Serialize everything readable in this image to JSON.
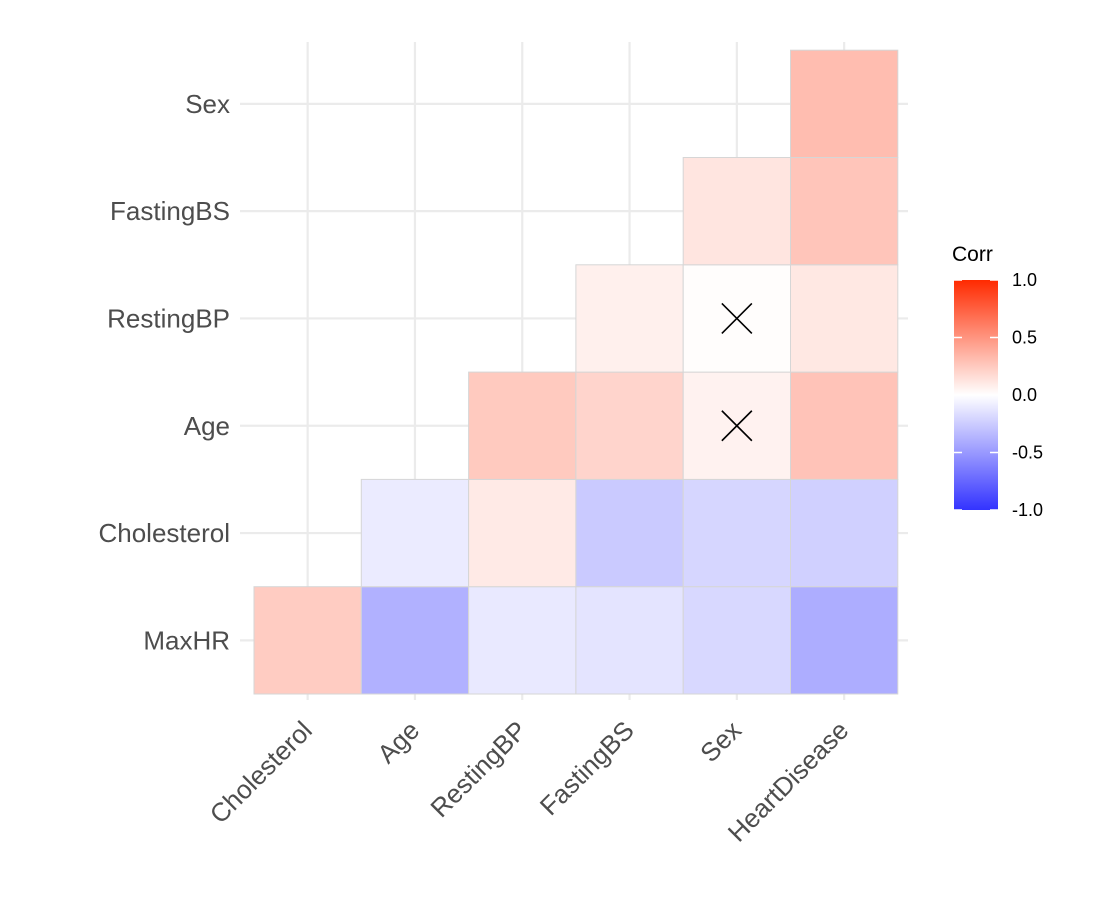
{
  "chart_data": {
    "type": "heatmap",
    "title": "",
    "xlabel": "",
    "ylabel": "",
    "x_categories": [
      "Cholesterol",
      "Age",
      "RestingBP",
      "FastingBS",
      "Sex",
      "HeartDisease"
    ],
    "y_categories": [
      "MaxHR",
      "Cholesterol",
      "Age",
      "RestingBP",
      "FastingBS",
      "Sex"
    ],
    "cells": [
      {
        "x": "Cholesterol",
        "y": "MaxHR",
        "value": 0.24
      },
      {
        "x": "Age",
        "y": "MaxHR",
        "value": -0.38
      },
      {
        "x": "RestingBP",
        "y": "MaxHR",
        "value": -0.11
      },
      {
        "x": "FastingBS",
        "y": "MaxHR",
        "value": -0.13
      },
      {
        "x": "Sex",
        "y": "MaxHR",
        "value": -0.19
      },
      {
        "x": "HeartDisease",
        "y": "MaxHR",
        "value": -0.4
      },
      {
        "x": "Age",
        "y": "Cholesterol",
        "value": -0.1
      },
      {
        "x": "RestingBP",
        "y": "Cholesterol",
        "value": 0.1
      },
      {
        "x": "FastingBS",
        "y": "Cholesterol",
        "value": -0.26
      },
      {
        "x": "Sex",
        "y": "Cholesterol",
        "value": -0.2
      },
      {
        "x": "HeartDisease",
        "y": "Cholesterol",
        "value": -0.23
      },
      {
        "x": "RestingBP",
        "y": "Age",
        "value": 0.25
      },
      {
        "x": "FastingBS",
        "y": "Age",
        "value": 0.2
      },
      {
        "x": "Sex",
        "y": "Age",
        "value": 0.06,
        "not_significant": true
      },
      {
        "x": "HeartDisease",
        "y": "Age",
        "value": 0.28
      },
      {
        "x": "FastingBS",
        "y": "RestingBP",
        "value": 0.07
      },
      {
        "x": "Sex",
        "y": "RestingBP",
        "value": 0.01,
        "not_significant": true
      },
      {
        "x": "HeartDisease",
        "y": "RestingBP",
        "value": 0.11
      },
      {
        "x": "Sex",
        "y": "FastingBS",
        "value": 0.12
      },
      {
        "x": "HeartDisease",
        "y": "FastingBS",
        "value": 0.27
      },
      {
        "x": "HeartDisease",
        "y": "Sex",
        "value": 0.31
      }
    ],
    "legend": {
      "title": "Corr",
      "position": "right",
      "range": [
        -1,
        1
      ],
      "tick_labels": [
        "1.0",
        "0.5",
        "0.0",
        "-0.5",
        "-1.0"
      ],
      "tick_values": [
        1,
        0.5,
        0,
        -0.5,
        -1
      ],
      "colors": {
        "low": "#3333ff",
        "mid": "#ffffff",
        "high": "#ff2a00"
      }
    },
    "grid": true,
    "insignificant_mark": "cross"
  }
}
